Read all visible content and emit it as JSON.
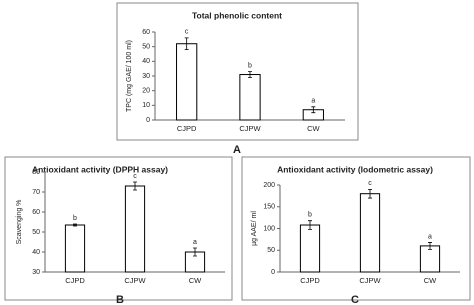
{
  "chart_data": [
    {
      "type": "bar",
      "panel": "A",
      "title": "Total phenolic content",
      "y_label": "TPC (mg GAE/ 100 ml)",
      "categories": [
        "CJPD",
        "CJPW",
        "CW"
      ],
      "values": [
        52,
        31,
        7
      ],
      "errors": [
        4,
        2,
        2
      ],
      "annotations": [
        "c",
        "b",
        "a"
      ],
      "ylim": [
        0,
        60
      ],
      "yticks": [
        0,
        10,
        20,
        30,
        40,
        50,
        60
      ],
      "color": "#ffffff",
      "grid": false
    },
    {
      "type": "bar",
      "panel": "B",
      "title": "Antioxidant activity (DPPH assay)",
      "y_label": "Scavenging %",
      "categories": [
        "CJPD",
        "CJPW",
        "CW"
      ],
      "values": [
        53.5,
        73,
        40
      ],
      "errors": [
        0.5,
        2,
        2
      ],
      "annotations": [
        "b",
        "c",
        "a"
      ],
      "ylim": [
        30,
        80
      ],
      "yticks": [
        30,
        40,
        50,
        60,
        70,
        80
      ],
      "color": "#ffffff",
      "grid": false
    },
    {
      "type": "bar",
      "panel": "C",
      "title": "Antioxidant activity (Iodometric assay)",
      "y_label": "µg AAE/ ml",
      "categories": [
        "CJPD",
        "CJPW",
        "CW"
      ],
      "values": [
        108,
        180,
        60
      ],
      "errors": [
        10,
        10,
        8
      ],
      "annotations": [
        "b",
        "c",
        "a"
      ],
      "ylim": [
        0,
        200
      ],
      "yticks": [
        0,
        50,
        100,
        150,
        200
      ],
      "color": "#ffffff",
      "grid": false
    }
  ]
}
